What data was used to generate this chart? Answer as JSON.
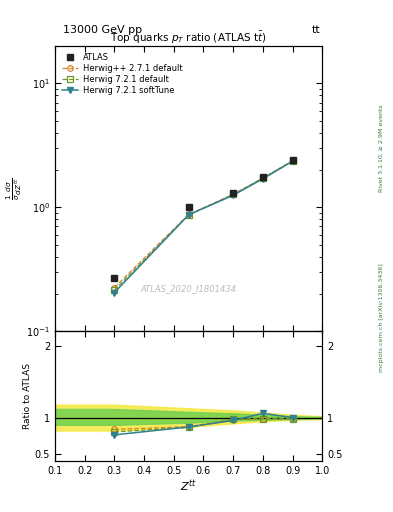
{
  "top_label": "13000 GeV pp",
  "top_right_label": "tt",
  "title": "Top quarks $p_{T}$ ratio (ATLAS t$\\bar{t}$)",
  "ylabel_main": "$\\frac{1}{\\sigma}\\frac{d\\sigma}{dZ^{tt}}$",
  "ylabel_ratio": "Ratio to ATLAS",
  "xlabel": "$Z^{tt}$",
  "watermark": "ATLAS_2020_I1801434",
  "right_label1": "Rivet 3.1.10, ≥ 2.9M events",
  "right_label2": "mcplots.cern.ch [arXiv:1306.3436]",
  "x_data": [
    0.3,
    0.55,
    0.7,
    0.8,
    0.9
  ],
  "atlas_y": [
    0.27,
    1.0,
    1.3,
    1.75,
    2.4
  ],
  "herwig_pp_271_y": [
    0.225,
    0.875,
    1.27,
    1.72,
    2.37
  ],
  "herwig_721_def_y": [
    0.215,
    0.865,
    1.27,
    1.72,
    2.37
  ],
  "herwig_721_soft_y": [
    0.205,
    0.87,
    1.25,
    1.7,
    2.35
  ],
  "ratio_herwig_pp_271": [
    0.835,
    0.875,
    0.975,
    0.985,
    0.985
  ],
  "ratio_herwig_721_def": [
    0.8,
    0.865,
    0.975,
    0.985,
    0.985
  ],
  "ratio_herwig_721_soft": [
    0.76,
    0.87,
    0.96,
    1.06,
    1.0
  ],
  "band_x": [
    0.1,
    0.3,
    0.55,
    0.7,
    0.8,
    0.9,
    1.0
  ],
  "band_yellow_lo": [
    0.82,
    0.82,
    0.87,
    0.92,
    0.95,
    0.97,
    0.98
  ],
  "band_yellow_hi": [
    1.18,
    1.18,
    1.13,
    1.1,
    1.07,
    1.04,
    1.02
  ],
  "band_green_lo": [
    0.9,
    0.9,
    0.93,
    0.96,
    0.97,
    0.98,
    0.99
  ],
  "band_green_hi": [
    1.12,
    1.12,
    1.08,
    1.06,
    1.04,
    1.02,
    1.01
  ],
  "color_atlas": "#222222",
  "color_herwig_pp": "#d4802a",
  "color_herwig_721_def": "#6a9a20",
  "color_herwig_721_soft": "#308090",
  "color_right_text": "#308040",
  "ylim_main": [
    0.1,
    20
  ],
  "ylim_ratio": [
    0.4,
    2.2
  ],
  "xlim": [
    0.1,
    1.0
  ],
  "yticks_ratio_left": [
    0.5,
    1.0,
    2.0
  ],
  "yticks_ratio_right": [
    0.5,
    1.0,
    2.0
  ]
}
